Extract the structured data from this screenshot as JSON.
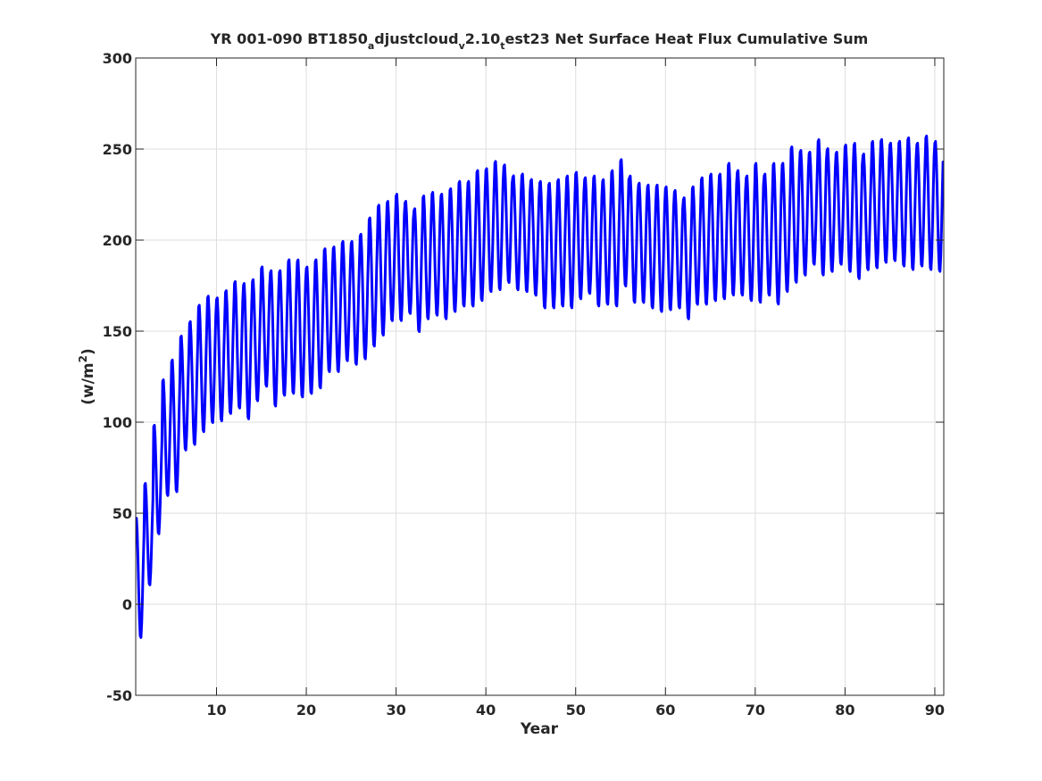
{
  "chart_data": {
    "type": "line",
    "title_parts": [
      {
        "text": "YR 001-090 BT1850",
        "sub": false
      },
      {
        "text": "a",
        "sub": true
      },
      {
        "text": "djustcloud",
        "sub": false
      },
      {
        "text": "v",
        "sub": true
      },
      {
        "text": "2.10",
        "sub": false
      },
      {
        "text": "t",
        "sub": true
      },
      {
        "text": "est23 Net Surface Heat Flux  Cumulative Sum",
        "sub": false
      }
    ],
    "xlabel": "Year",
    "ylabel_prefix": "(w/m",
    "ylabel_sup": "2",
    "ylabel_suffix": ")",
    "xlim": [
      1,
      91
    ],
    "ylim": [
      -50,
      300
    ],
    "xticks": [
      10,
      20,
      30,
      40,
      50,
      60,
      70,
      80,
      90
    ],
    "yticks": [
      -50,
      0,
      50,
      100,
      150,
      200,
      250,
      300
    ],
    "xtick_labels": [
      "10",
      "20",
      "30",
      "40",
      "50",
      "60",
      "70",
      "80",
      "90"
    ],
    "ytick_labels": [
      "-50",
      "0",
      "50",
      "100",
      "150",
      "200",
      "250",
      "300"
    ],
    "grid": true,
    "series": [
      {
        "color": "#0000ff",
        "line_width": 3,
        "samples_per_year": 12,
        "annual_peaks": [
          48,
          67,
          99,
          124,
          135,
          148,
          156,
          165,
          170,
          169,
          173,
          178,
          177,
          179,
          186,
          184,
          184,
          190,
          190,
          186,
          190,
          196,
          197,
          200,
          200,
          204,
          213,
          220,
          222,
          226,
          222,
          218,
          225,
          227,
          226,
          229,
          233,
          233,
          239,
          240,
          244,
          242,
          236,
          237,
          234,
          233,
          232,
          234,
          236,
          238,
          235,
          236,
          234,
          239,
          245,
          236,
          232,
          231,
          231,
          230,
          228,
          224,
          230,
          235,
          237,
          237,
          243,
          239,
          236,
          243,
          237,
          243,
          243,
          252,
          250,
          249,
          256,
          251,
          249,
          253,
          254,
          248,
          255,
          256,
          254,
          255,
          257,
          254,
          258,
          255,
          219
        ],
        "annual_troughs": [
          -19,
          10,
          38,
          59,
          61,
          84,
          87,
          94,
          99,
          100,
          104,
          107,
          101,
          111,
          119,
          108,
          114,
          115,
          113,
          115,
          118,
          127,
          127,
          133,
          131,
          134,
          141,
          147,
          155,
          155,
          159,
          149,
          156,
          158,
          156,
          160,
          163,
          163,
          166,
          171,
          172,
          176,
          172,
          171,
          169,
          162,
          162,
          163,
          162,
          167,
          170,
          163,
          164,
          163,
          174,
          165,
          165,
          162,
          160,
          161,
          162,
          156,
          164,
          164,
          166,
          167,
          169,
          169,
          166,
          165,
          169,
          164,
          171,
          176,
          180,
          186,
          180,
          182,
          186,
          182,
          178,
          183,
          184,
          187,
          188,
          185,
          183,
          185,
          183,
          182,
          183
        ]
      }
    ]
  }
}
